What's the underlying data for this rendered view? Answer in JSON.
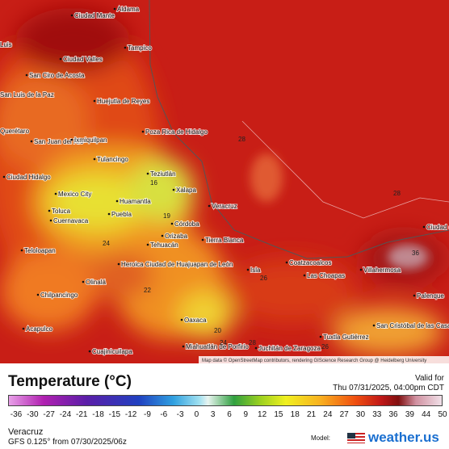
{
  "map": {
    "cities": [
      "Aldama",
      "Ciudad Mante",
      "Tampico",
      "Luis",
      "Ciudad Valles",
      "San Ciro de Acosta",
      "Huejutla de Reyes",
      "San Luis de la Paz",
      "Poza Rica de Hidalgo",
      "Querétaro",
      "San Juan del Río",
      "Ixmiquilpan",
      "Tulancingo",
      "Ciudad Hidalgo",
      "Teziutlán",
      "Xalapa",
      "Mexico City",
      "Huamantla",
      "Toluca",
      "Cuernavaca",
      "Puebla",
      "Córdoba",
      "Veracruz",
      "Orizaba",
      "Tehuacán",
      "Tierra Blanca",
      "Teloloapan",
      "Heroica Ciudad de Huajuapan de León",
      "Coatzacoalcos",
      "Isla",
      "Las Choapas",
      "Villahermosa",
      "Palenque",
      "Ciudad del Carmen",
      "Olinalá",
      "Chilpancingo",
      "Acapulco",
      "Oaxaca",
      "Tuxtla Gutiérrez",
      "San Cristóbal de las Casas",
      "Miahuatlán de Porfirio",
      "Juchitán de Zaragoza",
      "Cuajinicuilapa"
    ],
    "temperatures": [
      28,
      28,
      19,
      16,
      24,
      22,
      36,
      26,
      20,
      24,
      28,
      26
    ],
    "attribution": "Map data © OpenStreetMap contributors, rendering GIScience Research Group @ Heidelberg University"
  },
  "legend": {
    "title": "Temperature (°C)",
    "valid_label": "Valid for",
    "valid_time": "Thu 07/31/2025, 04:00pm CDT",
    "ticks": [
      -36,
      -30,
      -27,
      -24,
      -21,
      -18,
      -15,
      -12,
      -9,
      -6,
      -3,
      0,
      3,
      6,
      9,
      12,
      15,
      18,
      21,
      24,
      27,
      30,
      33,
      36,
      39,
      44,
      50
    ]
  },
  "footer": {
    "region": "Veracruz",
    "model_run": "GFS 0.125° from 07/30/2025/06z",
    "model_label": "Model:",
    "brand": "weather.us"
  }
}
